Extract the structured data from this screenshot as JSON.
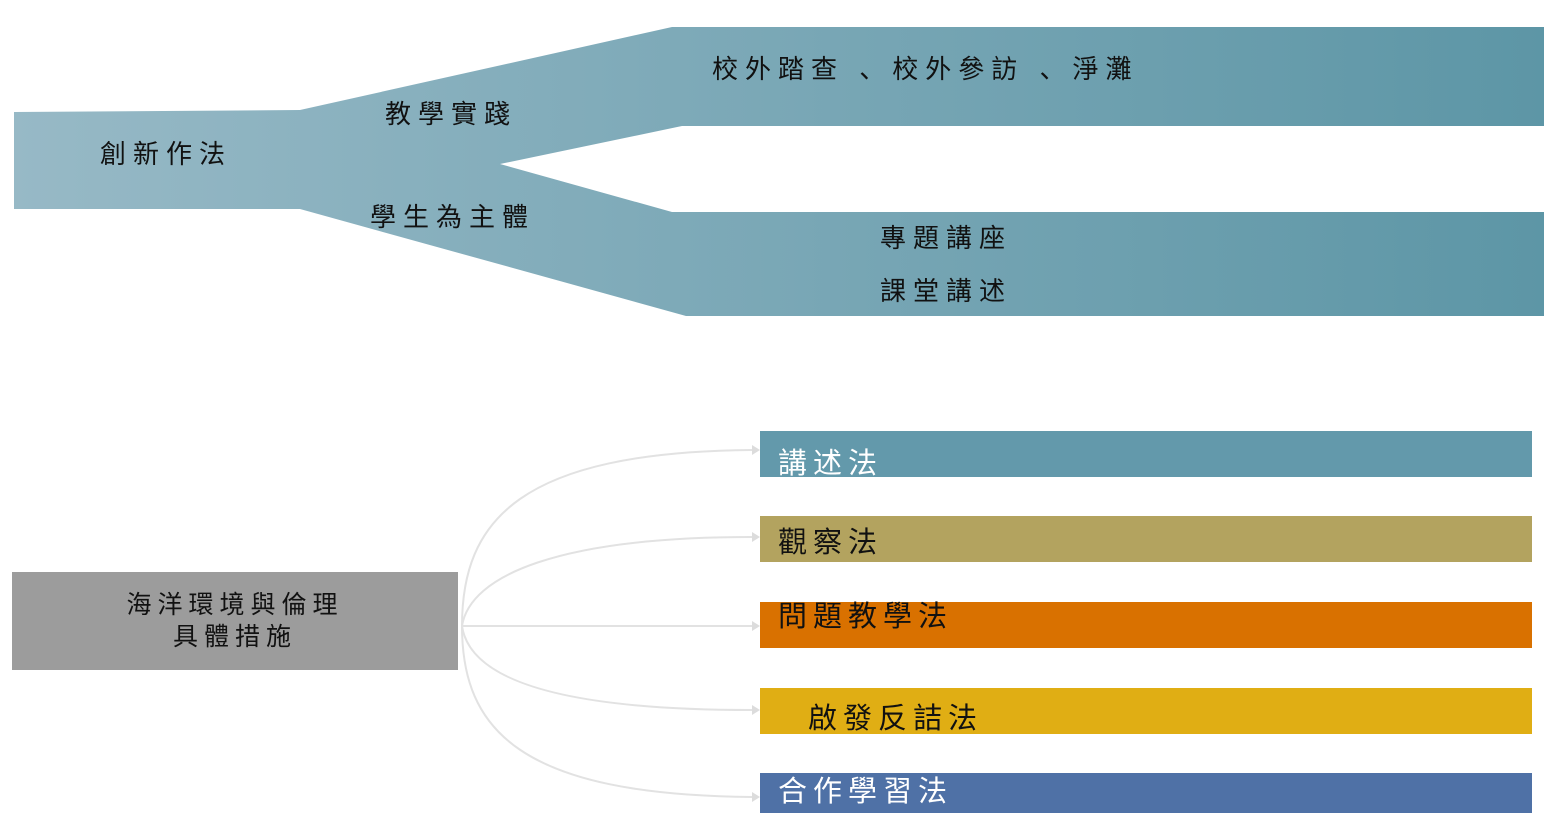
{
  "diagram1": {
    "root": "創新作法",
    "branches": [
      {
        "label": "教學實踐",
        "items": [
          "校外踏查 、校外參訪 、淨灘"
        ]
      },
      {
        "label": "學生為主體",
        "items": [
          "專題講座",
          "課堂講述"
        ]
      }
    ],
    "colors": {
      "light": "#97b9c6",
      "dark": "#5d96a6"
    }
  },
  "diagram2": {
    "root_lines": [
      "海洋環境與倫理",
      "具體措施"
    ],
    "root_color": "#9c9c9c",
    "connector_color": "#e2e2e2",
    "methods": [
      {
        "label": "講述法",
        "color": "#6399ab",
        "text_color": "#ffffff"
      },
      {
        "label": "觀察法",
        "color": "#b3a35f",
        "text_color": "#111111"
      },
      {
        "label": "問題教學法",
        "color": "#d97100",
        "text_color": "#111111"
      },
      {
        "label": "啟發反詰法",
        "color": "#e0ae14",
        "text_color": "#111111"
      },
      {
        "label": "合作學習法",
        "color": "#4f71a6",
        "text_color": "#ffffff"
      }
    ]
  }
}
